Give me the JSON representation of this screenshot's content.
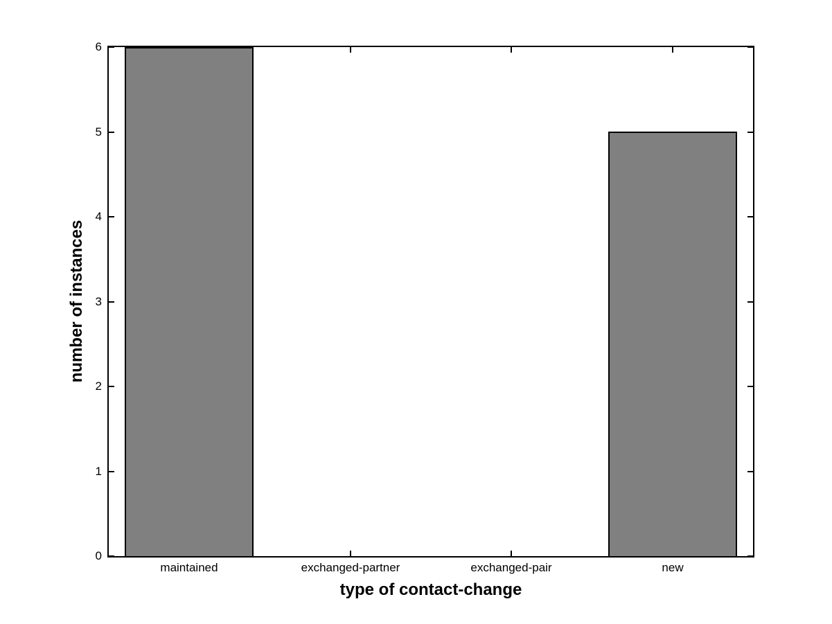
{
  "chart_data": {
    "type": "bar",
    "title": "",
    "xlabel": "type of contact-change",
    "ylabel": "number of instances",
    "categories": [
      "maintained",
      "exchanged-partner",
      "exchanged-pair",
      "new"
    ],
    "values": [
      6,
      0,
      0,
      5
    ],
    "ylim": [
      0,
      6
    ],
    "yticks": [
      0,
      1,
      2,
      3,
      4,
      5,
      6
    ],
    "grid": false,
    "legend_position": "none",
    "bar_color": "#808080",
    "bar_edge_color": "#000000",
    "axis_color": "#000000",
    "background_color": "#ffffff",
    "bar_width_fraction": 0.8
  }
}
